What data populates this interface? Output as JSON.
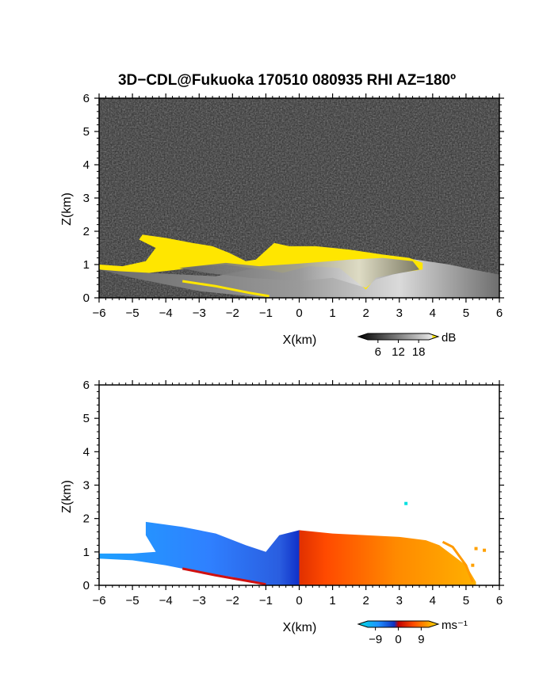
{
  "title": "3D−CDL@Fukuoka 170510 080935 RHI AZ=180º",
  "chart_data": [
    {
      "type": "heatmap",
      "quantity": "reflectivity",
      "xlabel": "X(km)",
      "ylabel": "Z(km)",
      "xlim": [
        -6,
        6
      ],
      "ylim": [
        0,
        6
      ],
      "xticks": [
        "−6",
        "−5",
        "−4",
        "−3",
        "−2",
        "−1",
        "0",
        "1",
        "2",
        "3",
        "4",
        "5",
        "6"
      ],
      "yticks": [
        "0",
        "1",
        "2",
        "3",
        "4",
        "5",
        "6"
      ],
      "background_color": "#2a2a2a",
      "colorbar": {
        "unit": "dB",
        "ticks": [
          "6",
          "12",
          "18"
        ],
        "range": [
          3,
          21
        ],
        "high_color": "#ffe600"
      },
      "yellow_echo_outline": [
        [
          -4.7,
          1.9
        ],
        [
          -4.0,
          1.8
        ],
        [
          -3.2,
          1.65
        ],
        [
          -2.6,
          1.55
        ],
        [
          -2.1,
          1.35
        ],
        [
          -1.6,
          1.1
        ],
        [
          -1.3,
          1.15
        ],
        [
          -0.75,
          1.65
        ],
        [
          -0.3,
          1.55
        ],
        [
          0.5,
          1.55
        ],
        [
          1.5,
          1.45
        ],
        [
          2.5,
          1.3
        ],
        [
          3.3,
          1.2
        ],
        [
          3.7,
          1.05
        ],
        [
          3.7,
          0.85
        ],
        [
          3.0,
          0.75
        ],
        [
          2.3,
          0.6
        ],
        [
          2.0,
          0.25
        ],
        [
          1.2,
          0.9
        ],
        [
          0.3,
          0.95
        ],
        [
          -0.5,
          0.75
        ],
        [
          -1.0,
          0.85
        ],
        [
          -1.5,
          0.9
        ],
        [
          -2.2,
          1.0
        ],
        [
          -3.0,
          0.95
        ],
        [
          -3.6,
          0.85
        ],
        [
          -4.5,
          0.75
        ],
        [
          -5.4,
          0.8
        ],
        [
          -6.0,
          0.85
        ],
        [
          -6.0,
          1.0
        ],
        [
          -5.3,
          0.95
        ],
        [
          -4.6,
          1.1
        ],
        [
          -4.3,
          1.5
        ],
        [
          -4.8,
          1.75
        ]
      ],
      "yellow_echo_lower_streak": [
        [
          -3.5,
          0.5
        ],
        [
          -2.5,
          0.35
        ],
        [
          -1.5,
          0.15
        ],
        [
          -0.9,
          0.05
        ]
      ],
      "gray_echo_hull": [
        [
          -6.0,
          0.85
        ],
        [
          -4.5,
          0.75
        ],
        [
          -3.5,
          0.7
        ],
        [
          -2.5,
          0.65
        ],
        [
          -1.5,
          0.85
        ],
        [
          -0.5,
          1.0
        ],
        [
          0.5,
          1.2
        ],
        [
          1.5,
          1.3
        ],
        [
          2.5,
          1.25
        ],
        [
          3.5,
          1.15
        ],
        [
          4.5,
          1.0
        ],
        [
          5.2,
          0.85
        ],
        [
          6.0,
          0.7
        ],
        [
          6.0,
          0.0
        ],
        [
          -1.0,
          0.0
        ],
        [
          -3.0,
          0.2
        ],
        [
          -5.0,
          0.6
        ]
      ]
    },
    {
      "type": "heatmap",
      "quantity": "doppler_velocity",
      "xlabel": "X(km)",
      "ylabel": "Z(km)",
      "xlim": [
        -6,
        6
      ],
      "ylim": [
        0,
        6
      ],
      "xticks": [
        "−6",
        "−5",
        "−4",
        "−3",
        "−2",
        "−1",
        "0",
        "1",
        "2",
        "3",
        "4",
        "5",
        "6"
      ],
      "yticks": [
        "0",
        "1",
        "2",
        "3",
        "4",
        "5",
        "6"
      ],
      "colorbar": {
        "unit": "ms⁻¹",
        "ticks": [
          "−9",
          "0",
          "9"
        ],
        "range": [
          -12,
          12
        ]
      },
      "negative_region": [
        [
          -4.6,
          1.9
        ],
        [
          -3.5,
          1.75
        ],
        [
          -2.5,
          1.55
        ],
        [
          -1.6,
          1.2
        ],
        [
          -1.0,
          1.0
        ],
        [
          -0.6,
          1.5
        ],
        [
          0.0,
          1.65
        ],
        [
          0.0,
          0.0
        ],
        [
          -1.0,
          0.0
        ],
        [
          -2.0,
          0.25
        ],
        [
          -3.0,
          0.4
        ],
        [
          -4.0,
          0.6
        ],
        [
          -5.0,
          0.75
        ],
        [
          -6.0,
          0.8
        ],
        [
          -6.0,
          0.95
        ],
        [
          -5.0,
          0.95
        ],
        [
          -4.3,
          1.0
        ],
        [
          -4.6,
          1.5
        ]
      ],
      "positive_region": [
        [
          0.0,
          1.65
        ],
        [
          1.0,
          1.55
        ],
        [
          2.0,
          1.5
        ],
        [
          3.0,
          1.45
        ],
        [
          3.8,
          1.35
        ],
        [
          4.2,
          1.2
        ],
        [
          4.6,
          0.9
        ],
        [
          5.0,
          0.6
        ],
        [
          5.3,
          0.1
        ],
        [
          5.3,
          0.0
        ],
        [
          0.0,
          0.0
        ]
      ],
      "positive_front_streak": [
        [
          4.3,
          1.3
        ],
        [
          4.6,
          1.15
        ],
        [
          5.0,
          0.6
        ],
        [
          5.2,
          0.1
        ]
      ],
      "outlier_points": [
        {
          "x": 3.2,
          "z": 2.45,
          "v": -9
        },
        {
          "x": 5.3,
          "z": 1.1,
          "v": 9
        },
        {
          "x": 5.55,
          "z": 1.05,
          "v": 9
        },
        {
          "x": 5.2,
          "z": 0.6,
          "v": 9
        }
      ]
    }
  ]
}
